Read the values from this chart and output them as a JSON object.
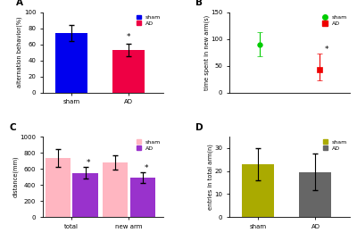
{
  "A": {
    "categories": [
      "sham",
      "AD"
    ],
    "values": [
      74,
      53
    ],
    "errors": [
      10,
      8
    ],
    "colors": [
      "#0000EE",
      "#EE0044"
    ],
    "ylabel": "alternation behavior(%)",
    "ylim": [
      0,
      100
    ],
    "yticks": [
      0,
      20,
      40,
      60,
      80,
      100
    ],
    "label": "A",
    "legend_labels": [
      "sham",
      "AD"
    ],
    "legend_colors": [
      "#0000EE",
      "#EE0044"
    ]
  },
  "B": {
    "x_positions": [
      0.25,
      0.75
    ],
    "values": [
      90,
      43
    ],
    "errors_up": [
      23,
      30
    ],
    "errors_down": [
      23,
      20
    ],
    "colors": [
      "#00CC00",
      "#EE0000"
    ],
    "markers": [
      "o",
      "s"
    ],
    "ylabel": "time spent in new arm(s)",
    "ylim": [
      0,
      150
    ],
    "yticks": [
      0,
      50,
      100,
      150
    ],
    "xlim": [
      0,
      1
    ],
    "label": "B",
    "legend_labels": [
      "sham",
      "AD"
    ],
    "legend_colors": [
      "#00CC00",
      "#EE0000"
    ]
  },
  "C": {
    "group_categories": [
      "total",
      "new arm"
    ],
    "sham_values": [
      735,
      675
    ],
    "ad_values": [
      550,
      490
    ],
    "sham_errors": [
      110,
      90
    ],
    "ad_errors": [
      70,
      65
    ],
    "sham_color": "#FFB6C1",
    "ad_color": "#9932CC",
    "ylabel": "distance(mm)",
    "ylim": [
      0,
      1000
    ],
    "yticks": [
      0,
      200,
      400,
      600,
      800,
      1000
    ],
    "label": "C",
    "legend_labels": [
      "sham",
      "AD"
    ],
    "legend_colors": [
      "#FFB6C1",
      "#9932CC"
    ]
  },
  "D": {
    "categories": [
      "sham",
      "AD"
    ],
    "values": [
      23,
      19.5
    ],
    "errors": [
      7,
      8
    ],
    "colors": [
      "#AAAA00",
      "#666666"
    ],
    "ylabel": "entries in total arm(n)",
    "ylim": [
      0,
      35
    ],
    "yticks": [
      0,
      10,
      20,
      30
    ],
    "label": "D",
    "legend_labels": [
      "sham",
      "AD"
    ],
    "legend_colors": [
      "#AAAA00",
      "#666666"
    ]
  }
}
